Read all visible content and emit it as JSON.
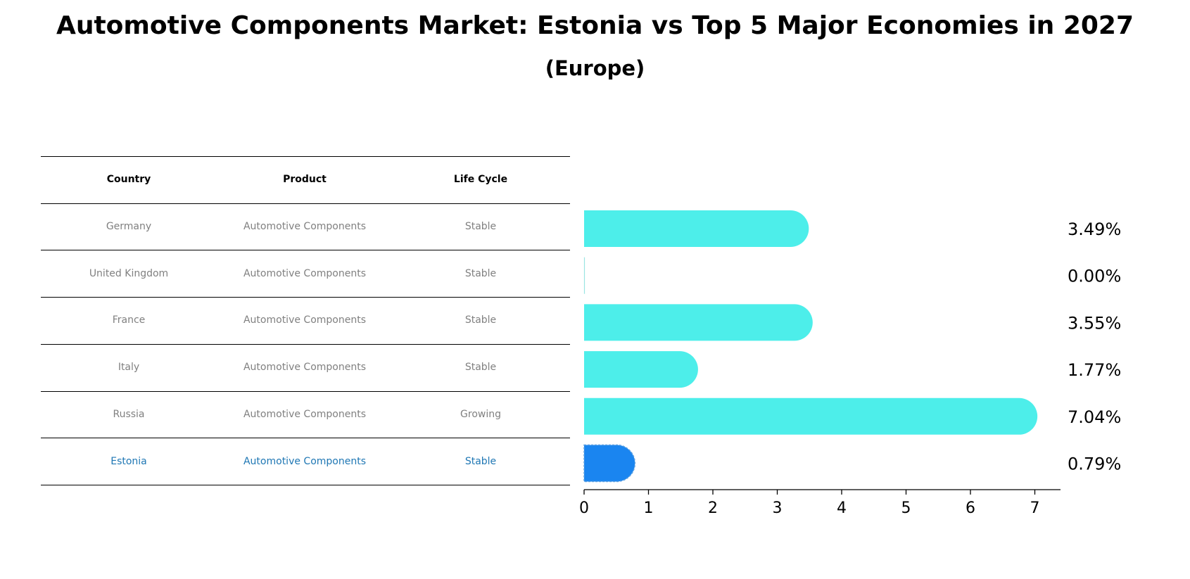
{
  "title": "Automotive Components Market: Estonia vs Top 5 Major Economies in 2027",
  "subtitle": "(Europe)",
  "table": {
    "headers": [
      "Country",
      "Product",
      "Life Cycle"
    ],
    "rows": [
      {
        "country": "Germany",
        "product": "Automotive Components",
        "life_cycle": "Stable"
      },
      {
        "country": "United Kingdom",
        "product": "Automotive Components",
        "life_cycle": "Stable"
      },
      {
        "country": "France",
        "product": "Automotive Components",
        "life_cycle": "Stable"
      },
      {
        "country": "Italy",
        "product": "Automotive Components",
        "life_cycle": "Stable"
      },
      {
        "country": "Russia",
        "product": "Automotive Components",
        "life_cycle": "Growing"
      },
      {
        "country": "Estonia",
        "product": "Automotive Components",
        "life_cycle": "Stable"
      }
    ],
    "highlight_color": "#1f77b4",
    "text_color": "#808080"
  },
  "chart_data": {
    "type": "bar",
    "orientation": "horizontal",
    "categories": [
      "Germany",
      "United Kingdom",
      "France",
      "Italy",
      "Russia",
      "Estonia"
    ],
    "values": [
      3.49,
      0.0,
      3.55,
      1.77,
      7.04,
      0.79
    ],
    "value_labels": [
      "3.49%",
      "0.00%",
      "3.55%",
      "1.77%",
      "7.04%",
      "0.79%"
    ],
    "highlight": "Estonia",
    "bar_color": "#4DEEEA",
    "highlight_color": "#1A85F0",
    "xlim": [
      0,
      7.4
    ],
    "xticks": [
      0,
      1,
      2,
      3,
      4,
      5,
      6,
      7
    ],
    "xlabel": "",
    "ylabel": ""
  }
}
